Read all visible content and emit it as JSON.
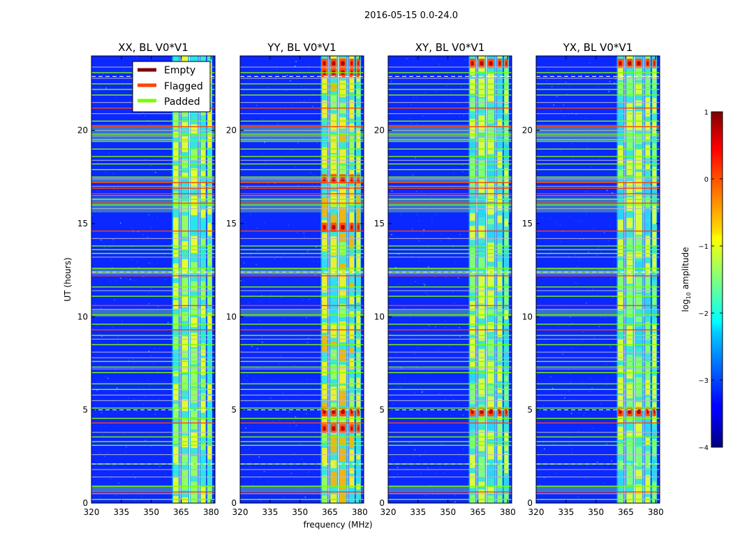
{
  "chart_data": {
    "type": "heatmap",
    "suptitle": "2016-05-15 0.0-24.0",
    "xlabel": "frequency (MHz)",
    "ylabel": "UT (hours)",
    "xlim": [
      320,
      382
    ],
    "ylim": [
      0,
      24
    ],
    "xticks": [
      320,
      335,
      350,
      365,
      380
    ],
    "yticks": [
      0,
      5,
      10,
      15,
      20
    ],
    "panels": [
      {
        "title": "XX, BL V0*V1",
        "strong_bursts": [],
        "variant": 0
      },
      {
        "title": "YY, BL V0*V1",
        "strong_bursts": [
          4.0,
          4.9,
          14.8,
          17.4,
          23.1,
          23.6
        ],
        "variant": 1
      },
      {
        "title": "XY, BL V0*V1",
        "strong_bursts": [
          4.9,
          23.6
        ],
        "variant": 2
      },
      {
        "title": "YX, BL V0*V1",
        "strong_bursts": [
          4.9,
          23.6
        ],
        "variant": 3
      }
    ],
    "legend": {
      "location": "top-right of first panel",
      "entries": [
        {
          "label": "Empty",
          "color": "#800000"
        },
        {
          "label": "Flagged",
          "color": "#ff4500"
        },
        {
          "label": "Padded",
          "color": "#7cfc00"
        }
      ]
    },
    "colorbar": {
      "label": "log10 amplitude",
      "label_main": "log",
      "label_sub": "10",
      "label_rest": " amplitude",
      "min": -4,
      "max": 1,
      "ticks": [
        "−4",
        "−3",
        "−2",
        "−1",
        "0",
        "1"
      ],
      "tick_values": [
        -4,
        -3,
        -2,
        -1,
        0,
        1
      ],
      "colormap": "jet"
    },
    "band_channels_mhz": [
      [
        360.5,
        364.0
      ],
      [
        365.0,
        368.8
      ],
      [
        369.5,
        373.5
      ],
      [
        374.5,
        377.5
      ],
      [
        378.0,
        380.6
      ]
    ],
    "colors": {
      "background": "#0a28ff",
      "empty": "#800000",
      "flagged": "#ff4500",
      "padded": "#7cfc00"
    },
    "flagged_ut": [
      0.6,
      4.3,
      9.3,
      10.6,
      12.2,
      14.6,
      16.1,
      16.6,
      16.9,
      17.2,
      20.2,
      21.2
    ],
    "padded_ut": [
      0.2,
      0.9,
      2.1,
      3.1,
      3.3,
      3.55,
      4.55,
      5.1,
      6.1,
      6.4,
      7.0,
      7.3,
      7.6,
      8.5,
      9.0,
      9.6,
      10.1,
      11.1,
      11.6,
      12.4,
      12.6,
      13.4,
      13.6,
      13.8,
      16.0,
      16.3,
      17.5,
      17.9,
      18.2,
      18.6,
      19.0,
      19.5,
      19.8,
      20.5,
      21.9,
      22.2,
      22.5,
      23.1
    ],
    "gray_ut": [
      0.5,
      1.4,
      1.8,
      2.6,
      3.8,
      5.5,
      5.8,
      7.2,
      7.8,
      8.1,
      8.8,
      10.4,
      11.4,
      12.3,
      13.2,
      14.2,
      15.8,
      16.5,
      17.0,
      17.4,
      18.4,
      19.4,
      19.7,
      20.0,
      20.9,
      21.5,
      22.8,
      23.4
    ],
    "white_dashed_ut": [
      2.1,
      5.0,
      12.4,
      22.9
    ],
    "gray_bands_ut": [
      [
        0.6,
        0.95
      ],
      [
        10.0,
        10.4
      ],
      [
        12.3,
        12.6
      ],
      [
        15.6,
        16.4
      ],
      [
        17.2,
        17.5
      ],
      [
        19.4,
        20.3
      ]
    ]
  }
}
